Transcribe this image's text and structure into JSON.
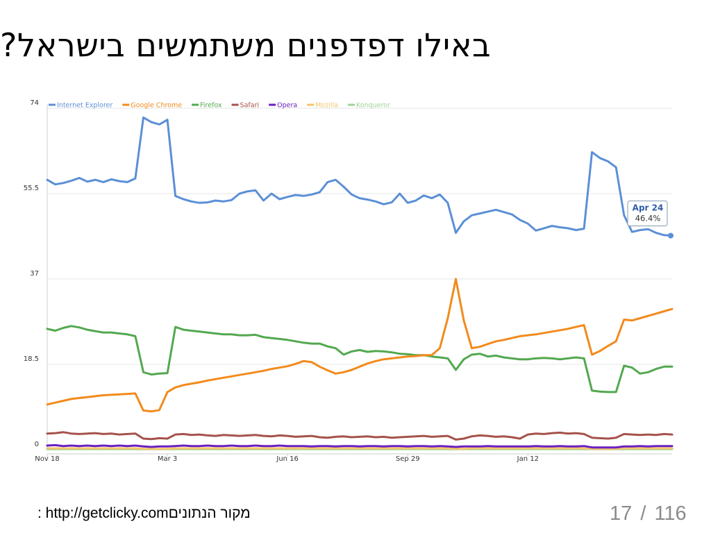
{
  "slide": {
    "title": "באילו דפדפנים משתמשים בישראל?",
    "source_prefix": ": http://getclicky.com",
    "source_label": "מקור הנתונים",
    "page_current": "17",
    "page_separator": "/",
    "page_total": "116"
  },
  "chart_data": {
    "type": "line",
    "title": "",
    "xlabel": "",
    "ylabel": "",
    "ylim": [
      0,
      74
    ],
    "yticks": [
      "0",
      "18.5",
      "37",
      "55.5",
      "74"
    ],
    "xticks": [
      {
        "label": "Nov 18",
        "week": 0
      },
      {
        "label": "Mar 3",
        "week": 15
      },
      {
        "label": "Jun 16",
        "week": 30
      },
      {
        "label": "Sep 29",
        "week": 45
      },
      {
        "label": "Jan 12",
        "week": 60
      }
    ],
    "grid": true,
    "legend_position": "top-left",
    "tooltip": {
      "date": "Apr 24",
      "value": "46.4%",
      "series": "Internet Explorer"
    },
    "series": [
      {
        "name": "Internet Explorer",
        "color": "#5b8fd6",
        "values": [
          58.5,
          57.5,
          57.8,
          58.3,
          58.9,
          58.1,
          58.5,
          58.0,
          58.6,
          58.2,
          58.0,
          58.8,
          72.0,
          71.0,
          70.5,
          71.5,
          55.0,
          54.3,
          53.8,
          53.5,
          53.6,
          54.0,
          53.8,
          54.1,
          55.5,
          56.0,
          56.2,
          54.0,
          55.5,
          54.3,
          54.8,
          55.2,
          55.0,
          55.3,
          55.8,
          58.0,
          58.5,
          57.0,
          55.3,
          54.5,
          54.2,
          53.8,
          53.2,
          53.6,
          55.5,
          53.5,
          54.0,
          55.1,
          54.5,
          55.3,
          53.5,
          47.0,
          49.5,
          50.8,
          51.2,
          51.6,
          52.0,
          51.5,
          51.0,
          49.8,
          49.0,
          47.5,
          48.0,
          48.5,
          48.2,
          48.0,
          47.6,
          47.9,
          64.5,
          63.2,
          62.5,
          61.2,
          50.8,
          47.2,
          47.6,
          47.8,
          47.0,
          46.5,
          46.4
        ]
      },
      {
        "name": "Google Chrome",
        "color": "#f28a1b",
        "values": [
          9.8,
          10.2,
          10.6,
          11.0,
          11.2,
          11.4,
          11.6,
          11.8,
          11.9,
          12.0,
          12.1,
          12.2,
          8.5,
          8.3,
          8.6,
          12.5,
          13.5,
          14.0,
          14.3,
          14.6,
          15.0,
          15.3,
          15.6,
          15.9,
          16.2,
          16.5,
          16.8,
          17.1,
          17.5,
          17.8,
          18.1,
          18.6,
          19.2,
          19.0,
          18.0,
          17.2,
          16.5,
          16.8,
          17.3,
          18.0,
          18.7,
          19.2,
          19.6,
          19.8,
          20.0,
          20.2,
          20.3,
          20.5,
          20.5,
          22.0,
          28.5,
          37.0,
          28.0,
          22.0,
          22.3,
          22.9,
          23.5,
          23.8,
          24.2,
          24.6,
          24.8,
          25.0,
          25.3,
          25.6,
          25.9,
          26.2,
          26.6,
          27.0,
          20.6,
          21.4,
          22.5,
          23.5,
          28.2,
          28.0,
          28.5,
          29.0,
          29.5,
          30.0,
          30.5
        ]
      },
      {
        "name": "Firefox",
        "color": "#52a84f",
        "values": [
          26.2,
          25.8,
          26.4,
          26.8,
          26.5,
          26.0,
          25.7,
          25.4,
          25.4,
          25.2,
          25.0,
          24.6,
          16.8,
          16.3,
          16.5,
          16.6,
          26.6,
          26.0,
          25.8,
          25.6,
          25.4,
          25.2,
          25.0,
          25.0,
          24.8,
          24.8,
          24.9,
          24.4,
          24.2,
          24.0,
          23.8,
          23.5,
          23.2,
          23.0,
          23.0,
          22.4,
          22.0,
          20.6,
          21.3,
          21.6,
          21.2,
          21.4,
          21.3,
          21.1,
          20.8,
          20.7,
          20.5,
          20.5,
          20.2,
          20.0,
          19.8,
          17.3,
          19.6,
          20.6,
          20.8,
          20.2,
          20.4,
          20.0,
          19.8,
          19.6,
          19.6,
          19.8,
          19.9,
          19.8,
          19.6,
          19.8,
          20.0,
          19.8,
          12.8,
          12.6,
          12.5,
          12.5,
          18.2,
          17.8,
          16.5,
          16.8,
          17.5,
          18.0,
          18.0
        ]
      },
      {
        "name": "Safari",
        "color": "#a5524b",
        "values": [
          3.5,
          3.6,
          3.8,
          3.5,
          3.4,
          3.5,
          3.6,
          3.4,
          3.5,
          3.3,
          3.4,
          3.5,
          2.4,
          2.3,
          2.5,
          2.4,
          3.3,
          3.4,
          3.2,
          3.3,
          3.1,
          3.0,
          3.2,
          3.1,
          3.0,
          3.1,
          3.2,
          3.0,
          2.9,
          3.1,
          3.0,
          2.8,
          2.9,
          3.0,
          2.7,
          2.6,
          2.8,
          2.9,
          2.7,
          2.8,
          2.9,
          2.7,
          2.8,
          2.6,
          2.7,
          2.8,
          2.9,
          3.0,
          2.8,
          2.9,
          3.0,
          2.2,
          2.4,
          2.9,
          3.1,
          3.0,
          2.8,
          2.9,
          2.7,
          2.4,
          3.3,
          3.5,
          3.4,
          3.6,
          3.7,
          3.5,
          3.6,
          3.4,
          2.6,
          2.5,
          2.4,
          2.6,
          3.4,
          3.3,
          3.2,
          3.3,
          3.2,
          3.4,
          3.3
        ]
      },
      {
        "name": "Opera",
        "color": "#6a1fc0",
        "values": [
          0.9,
          1.0,
          0.8,
          0.9,
          0.8,
          0.9,
          0.8,
          0.9,
          0.8,
          0.9,
          0.8,
          0.9,
          0.7,
          0.6,
          0.7,
          0.7,
          0.8,
          0.9,
          0.8,
          0.8,
          0.9,
          0.8,
          0.8,
          0.9,
          0.8,
          0.8,
          0.9,
          0.8,
          0.8,
          0.9,
          0.8,
          0.8,
          0.8,
          0.7,
          0.8,
          0.8,
          0.7,
          0.8,
          0.8,
          0.7,
          0.8,
          0.8,
          0.7,
          0.8,
          0.8,
          0.7,
          0.8,
          0.8,
          0.7,
          0.8,
          0.7,
          0.6,
          0.7,
          0.7,
          0.7,
          0.8,
          0.7,
          0.7,
          0.7,
          0.7,
          0.7,
          0.8,
          0.7,
          0.7,
          0.8,
          0.7,
          0.7,
          0.8,
          0.5,
          0.5,
          0.5,
          0.5,
          0.7,
          0.7,
          0.8,
          0.7,
          0.8,
          0.8,
          0.8
        ]
      },
      {
        "name": "Mozilla",
        "color": "#f5c56b",
        "values": [
          0.3,
          0.3,
          0.3,
          0.3,
          0.3,
          0.3,
          0.3,
          0.3,
          0.3,
          0.3,
          0.3,
          0.3,
          0.2,
          0.2,
          0.2,
          0.2,
          0.3,
          0.3,
          0.3,
          0.3,
          0.3,
          0.3,
          0.3,
          0.3,
          0.3,
          0.3,
          0.3,
          0.3,
          0.3,
          0.3,
          0.3,
          0.3,
          0.3,
          0.3,
          0.3,
          0.3,
          0.3,
          0.3,
          0.3,
          0.3,
          0.3,
          0.3,
          0.3,
          0.3,
          0.3,
          0.3,
          0.3,
          0.3,
          0.3,
          0.3,
          0.3,
          0.2,
          0.2,
          0.3,
          0.3,
          0.3,
          0.3,
          0.3,
          0.3,
          0.3,
          0.3,
          0.3,
          0.3,
          0.3,
          0.3,
          0.3,
          0.3,
          0.3,
          0.2,
          0.2,
          0.2,
          0.2,
          0.3,
          0.3,
          0.3,
          0.3,
          0.3,
          0.3,
          0.3
        ]
      },
      {
        "name": "Konqueror",
        "color": "#9ed39a",
        "values": [
          0.1,
          0.1,
          0.1,
          0.1,
          0.1,
          0.1,
          0.1,
          0.1,
          0.1,
          0.1,
          0.1,
          0.1,
          0.1,
          0.1,
          0.1,
          0.1,
          0.1,
          0.1,
          0.1,
          0.1,
          0.1,
          0.1,
          0.1,
          0.1,
          0.1,
          0.1,
          0.1,
          0.1,
          0.1,
          0.1,
          0.1,
          0.1,
          0.1,
          0.1,
          0.1,
          0.1,
          0.1,
          0.1,
          0.1,
          0.1,
          0.1,
          0.1,
          0.1,
          0.1,
          0.1,
          0.1,
          0.1,
          0.1,
          0.1,
          0.1,
          0.1,
          0.1,
          0.1,
          0.1,
          0.1,
          0.1,
          0.1,
          0.1,
          0.1,
          0.1,
          0.1,
          0.1,
          0.1,
          0.1,
          0.1,
          0.1,
          0.1,
          0.1,
          0.1,
          0.1,
          0.1,
          0.1,
          0.1,
          0.1,
          0.1,
          0.1,
          0.1,
          0.1,
          0.1
        ]
      }
    ]
  }
}
